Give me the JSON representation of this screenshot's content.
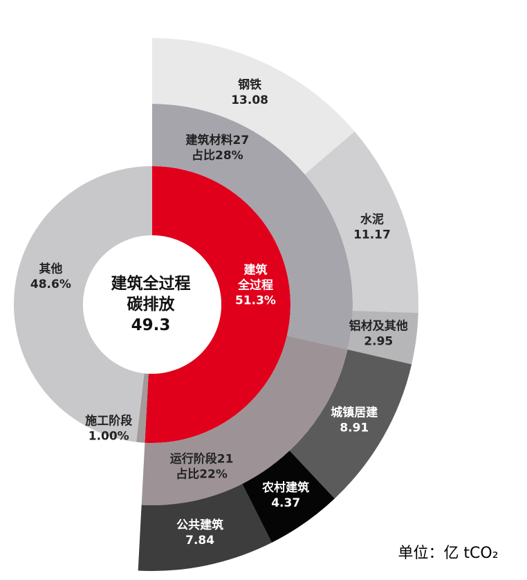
{
  "chart_data": {
    "type": "sunburst",
    "center": {
      "lines": [
        "建筑全过程",
        "碳排放"
      ],
      "total": 49.3
    },
    "unit": "单位：亿 tCO₂",
    "rings": [
      {
        "items": [
          {
            "name_lines": [
              "建筑",
              "全过程"
            ],
            "value": 51.3,
            "value_label": "51.3%",
            "color": "#e0001b",
            "text_color": "#ffffff"
          },
          {
            "name_lines": [
              "施工阶段"
            ],
            "value": 1.0,
            "value_label": "1.00%",
            "color": "#a39a9c",
            "text_color": "#222222"
          },
          {
            "name_lines": [
              "其他"
            ],
            "value": 48.6,
            "value_label": "48.6%",
            "color": "#c8c8ca",
            "text_color": "#222222"
          }
        ]
      },
      {
        "parent": 0,
        "items": [
          {
            "name": "建筑材料",
            "value": 27,
            "share_label": "占比28%",
            "color": "#a6a5ac",
            "text_color": "#222222"
          },
          {
            "name": "运行阶段",
            "value": 21,
            "share_label": "占比22%",
            "color": "#9d9396",
            "text_color": "#222222"
          }
        ]
      },
      {
        "items": [
          {
            "name": "钢铁",
            "value": 13.08,
            "group": 0,
            "color": "#e9e9ea",
            "text_color": "#222222"
          },
          {
            "name": "水泥",
            "value": 11.17,
            "group": 0,
            "color": "#d0d0d3",
            "text_color": "#222222"
          },
          {
            "name": "铝材及其他",
            "value": 2.95,
            "group": 0,
            "color": "#b6b6b9",
            "text_color": "#222222"
          },
          {
            "name": "城镇居建",
            "value": 8.91,
            "group": 1,
            "color": "#5b5b5b",
            "text_color": "#ffffff"
          },
          {
            "name": "农村建筑",
            "value": 4.37,
            "group": 1,
            "color": "#050505",
            "text_color": "#ffffff"
          },
          {
            "name": "公共建筑",
            "value": 7.84,
            "group": 1,
            "color": "#3d3d3d",
            "text_color": "#ffffff"
          }
        ]
      }
    ]
  }
}
